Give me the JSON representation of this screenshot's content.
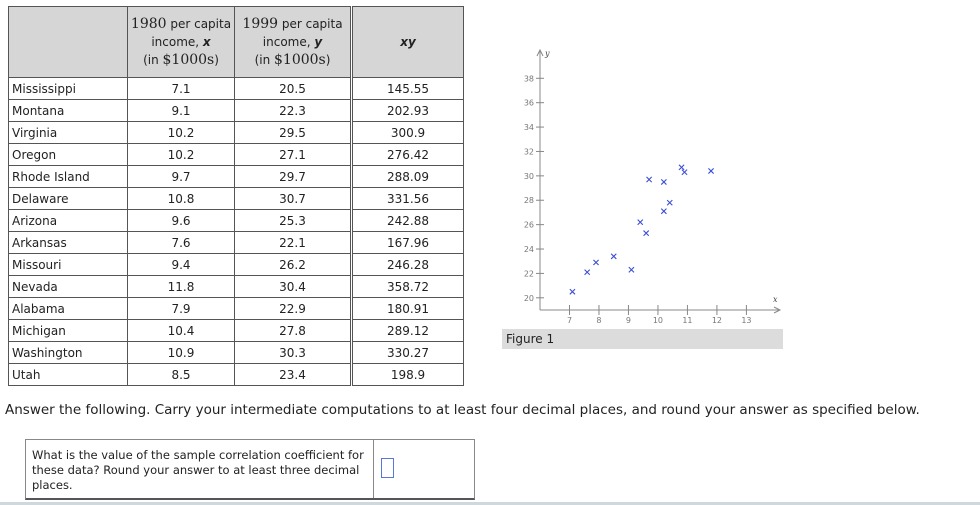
{
  "table": {
    "headers": {
      "state": "",
      "x": {
        "year": "1980",
        "line1": " per capita",
        "line2a": "income, ",
        "var": "x",
        "line3a": "(in ",
        "amount": "$1000s",
        "line3b": ")"
      },
      "y": {
        "year": "1999",
        "line1": " per capita",
        "line2a": "income, ",
        "var": "y",
        "line3a": "(in ",
        "amount": "$1000s",
        "line3b": ")"
      }
    },
    "rows": [
      {
        "state": "Mississippi",
        "x": "7.1",
        "y": "20.5"
      },
      {
        "state": "Montana",
        "x": "9.1",
        "y": "22.3"
      },
      {
        "state": "Virginia",
        "x": "10.2",
        "y": "29.5"
      },
      {
        "state": "Oregon",
        "x": "10.2",
        "y": "27.1"
      },
      {
        "state": "Rhode Island",
        "x": "9.7",
        "y": "29.7"
      },
      {
        "state": "Delaware",
        "x": "10.8",
        "y": "30.7"
      },
      {
        "state": "Arizona",
        "x": "9.6",
        "y": "25.3"
      },
      {
        "state": "Arkansas",
        "x": "7.6",
        "y": "22.1"
      },
      {
        "state": "Missouri",
        "x": "9.4",
        "y": "26.2"
      },
      {
        "state": "Nevada",
        "x": "11.8",
        "y": "30.4"
      },
      {
        "state": "Alabama",
        "x": "7.9",
        "y": "22.9"
      },
      {
        "state": "Michigan",
        "x": "10.4",
        "y": "27.8"
      },
      {
        "state": "Washington",
        "x": "10.9",
        "y": "30.3"
      },
      {
        "state": "Utah",
        "x": "8.5",
        "y": "23.4"
      }
    ]
  },
  "xy_table": {
    "header": "xy",
    "values": [
      "145.55",
      "202.93",
      "300.9",
      "276.42",
      "288.09",
      "331.56",
      "242.88",
      "167.96",
      "246.28",
      "358.72",
      "180.91",
      "289.12",
      "330.27",
      "198.9"
    ]
  },
  "chart_data": {
    "type": "scatter",
    "xlabel": "x",
    "ylabel": "y",
    "x_ticks": [
      7,
      8,
      9,
      10,
      11,
      12,
      13
    ],
    "y_ticks": [
      20,
      22,
      24,
      26,
      28,
      30,
      32,
      34,
      36,
      38
    ],
    "xlim": [
      6,
      13.8
    ],
    "ylim": [
      19,
      39.5
    ],
    "marker": "x",
    "marker_color": "#3a4fd4",
    "points": [
      {
        "x": 7.1,
        "y": 20.5
      },
      {
        "x": 9.1,
        "y": 22.3
      },
      {
        "x": 10.2,
        "y": 29.5
      },
      {
        "x": 10.2,
        "y": 27.1
      },
      {
        "x": 9.7,
        "y": 29.7
      },
      {
        "x": 10.8,
        "y": 30.7
      },
      {
        "x": 9.6,
        "y": 25.3
      },
      {
        "x": 7.6,
        "y": 22.1
      },
      {
        "x": 9.4,
        "y": 26.2
      },
      {
        "x": 11.8,
        "y": 30.4
      },
      {
        "x": 7.9,
        "y": 22.9
      },
      {
        "x": 10.4,
        "y": 27.8
      },
      {
        "x": 10.9,
        "y": 30.3
      },
      {
        "x": 8.5,
        "y": 23.4
      }
    ]
  },
  "figure": {
    "caption": "Figure 1"
  },
  "instructions": "Answer the following. Carry your intermediate computations to at least four decimal places, and round your answer as specified below.",
  "question": {
    "text": "What is the value of the sample correlation coefficient for these data? Round your answer to at least three decimal places.",
    "answer_value": ""
  },
  "colors": {
    "header_bg": "#d6d6d6",
    "marker": "#3a4fd4",
    "input_border": "#5a78d8"
  }
}
